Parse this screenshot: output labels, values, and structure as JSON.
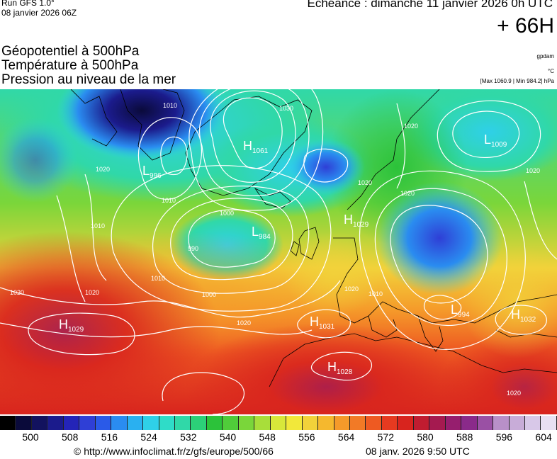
{
  "header": {
    "model_run": "Run GFS 1.0°",
    "run_date": "08 janvier 2026 06Z",
    "valid_time": "Echéance : dimanche 11 janvier 2026 0h UTC",
    "lead_time": "+ 66H"
  },
  "titles": {
    "line1": "Géopotentiel à 500hPa",
    "line2": "Température à 500hPa",
    "line3": "Pression au niveau de la mer"
  },
  "units": {
    "geopotential": "gpdam",
    "temperature": "°C",
    "pressure_range": "[Max 1060.9 | Min 984.2] hPa"
  },
  "pressure_centers": [
    {
      "kind": "H",
      "value": "1061"
    },
    {
      "kind": "L",
      "value": "996"
    },
    {
      "kind": "L",
      "value": "984"
    },
    {
      "kind": "H",
      "value": "1029"
    },
    {
      "kind": "H",
      "value": "1029"
    },
    {
      "kind": "H",
      "value": "1031"
    },
    {
      "kind": "H",
      "value": "1028"
    },
    {
      "kind": "L",
      "value": "994"
    },
    {
      "kind": "H",
      "value": "1032"
    },
    {
      "kind": "L",
      "value": "1009"
    }
  ],
  "isobar_labels": [
    "1010",
    "1030",
    "1020",
    "1010",
    "1010",
    "1000",
    "990",
    "1000",
    "1010",
    "1020",
    "1020",
    "1020",
    "1020",
    "1020",
    "1020",
    "1010",
    "1020",
    "1020",
    "1020"
  ],
  "colors": {
    "gradient": [
      "#0a0a3a",
      "#1b1b8c",
      "#2f3fd6",
      "#2a8cf0",
      "#2fd0e8",
      "#30d8a8",
      "#2cc23a",
      "#7ad63a",
      "#d8e83a",
      "#f2d23a",
      "#f59a2a",
      "#ee5a22",
      "#d8241e",
      "#a51a50",
      "#8a2a8a",
      "#b890c8",
      "#d8c8e8"
    ]
  },
  "scale": {
    "tick_labels": [
      "500",
      "508",
      "516",
      "524",
      "532",
      "540",
      "548",
      "556",
      "564",
      "572",
      "580",
      "588",
      "596",
      "604"
    ],
    "swatches": [
      "#000000",
      "#0a0a3a",
      "#12125e",
      "#1b1b8c",
      "#2424b8",
      "#2f3fd6",
      "#2a5ae8",
      "#2a8cf0",
      "#2ab0f0",
      "#2fd0e8",
      "#2fdcc8",
      "#30d8a8",
      "#2cd078",
      "#2cc23a",
      "#50cc3a",
      "#7ad63a",
      "#a8de3a",
      "#d8e83a",
      "#f2e83a",
      "#f2d23a",
      "#f5b82e",
      "#f59a2a",
      "#f27a26",
      "#ee5a22",
      "#e63a20",
      "#d8241e",
      "#c01c30",
      "#a51a50",
      "#961e6e",
      "#8a2a8a",
      "#9a50a4",
      "#b890c8",
      "#c8acd8",
      "#d8c8e8",
      "#e8e0f2"
    ]
  },
  "footer": {
    "url": "© http://www.infoclimat.fr/z/gfs/europe/500/66",
    "timestamp": "08 janv. 2026  9:50 UTC"
  }
}
